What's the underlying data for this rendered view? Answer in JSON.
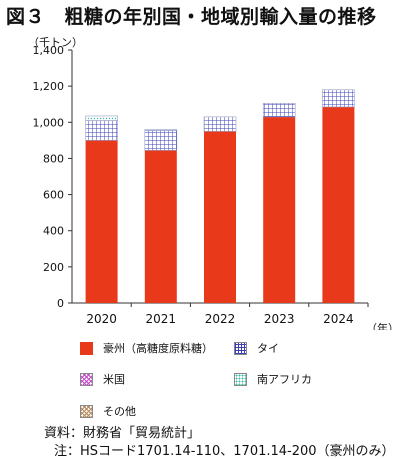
{
  "title": "図３　粗糖の年別国・地域別輸入量の推移",
  "source": "資料：財務省「貿易統計」",
  "note": "注：HSコード1701.14-110、1701.14-200（豪州のみ）",
  "chart_data": {
    "type": "bar",
    "stacked": true,
    "unit": "（千トン）",
    "x_unit": "（年）",
    "categories": [
      "2020",
      "2021",
      "2022",
      "2023",
      "2024"
    ],
    "ylim": [
      0,
      1400
    ],
    "yticks": [
      0,
      200,
      400,
      600,
      800,
      1000,
      1200,
      1400
    ],
    "grid": false,
    "legend_position": "bottom",
    "series": [
      {
        "name": "豪州（高糖度原料糖）",
        "color": "#e8391a",
        "pattern": "solid",
        "values": [
          900,
          845,
          950,
          1030,
          1085
        ]
      },
      {
        "name": "タイ",
        "color": "#3d3fb8",
        "pattern": "grid",
        "values": [
          110,
          110,
          80,
          75,
          95
        ]
      },
      {
        "name": "米国",
        "color": "#c246c9",
        "pattern": "crosshatch",
        "values": [
          0,
          0,
          0,
          0,
          0
        ]
      },
      {
        "name": "南アフリカ",
        "color": "#3db8a8",
        "pattern": "dots",
        "values": [
          25,
          5,
          0,
          0,
          0
        ]
      },
      {
        "name": "その他",
        "color": "#b28a62",
        "pattern": "crosshatch",
        "values": [
          0,
          0,
          0,
          0,
          0
        ]
      }
    ]
  }
}
